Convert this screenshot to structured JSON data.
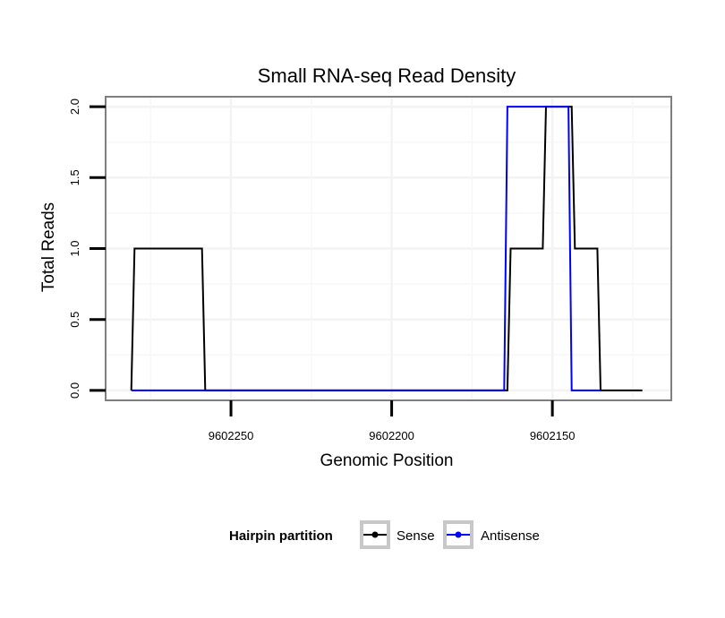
{
  "chart_data": {
    "type": "line",
    "title": "Small RNA-seq Read Density",
    "xlabel": "Genomic Position",
    "ylabel": "Total Reads",
    "xlim": [
      9602289,
      9602113
    ],
    "x_reversed": true,
    "ylim": [
      -0.07,
      2.07
    ],
    "x_ticks": [
      9602250,
      9602200,
      9602150
    ],
    "x_tick_labels": [
      "9602250",
      "9602200",
      "9602150"
    ],
    "y_ticks": [
      0,
      0.5,
      1,
      1.5,
      2
    ],
    "y_tick_labels": [
      "0.0",
      "0.5",
      "1.0",
      "1.5",
      "2.0"
    ],
    "grid": true,
    "legend": {
      "title": "Hairpin partition",
      "position": "bottom"
    },
    "series": [
      {
        "name": "Sense",
        "color": "#000000",
        "x": [
          9602281,
          9602280,
          9602259,
          9602258,
          9602164,
          9602163,
          9602153,
          9602152,
          9602144,
          9602143,
          9602136,
          9602135,
          9602122
        ],
        "y": [
          0,
          1,
          1,
          0,
          0,
          1,
          1,
          2,
          2,
          1,
          1,
          0,
          0
        ]
      },
      {
        "name": "Antisense",
        "color": "#0000ff",
        "x": [
          9602281,
          9602259,
          9602165,
          9602164,
          9602145,
          9602144,
          9602135
        ],
        "y": [
          0,
          0,
          0,
          2,
          2,
          0,
          0
        ]
      }
    ]
  }
}
